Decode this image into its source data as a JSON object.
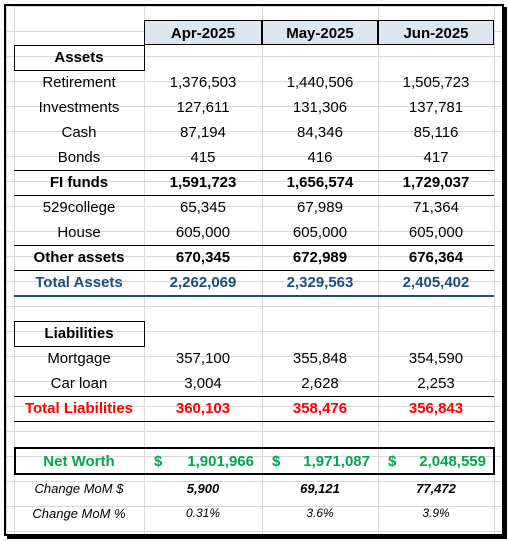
{
  "columns": [
    "Apr-2025",
    "May-2025",
    "Jun-2025"
  ],
  "assets": {
    "heading": "Assets",
    "rows": [
      {
        "label": "Retirement",
        "values": [
          "1,376,503",
          "1,440,506",
          "1,505,723"
        ]
      },
      {
        "label": "Investments",
        "values": [
          "127,611",
          "131,306",
          "137,781"
        ]
      },
      {
        "label": "Cash",
        "values": [
          "87,194",
          "84,346",
          "85,116"
        ]
      },
      {
        "label": "Bonds",
        "values": [
          "415",
          "416",
          "417"
        ]
      }
    ],
    "fi_funds": {
      "label": "FI funds",
      "values": [
        "1,591,723",
        "1,656,574",
        "1,729,037"
      ]
    },
    "other_rows": [
      {
        "label": "529college",
        "values": [
          "65,345",
          "67,989",
          "71,364"
        ]
      },
      {
        "label": "House",
        "values": [
          "605,000",
          "605,000",
          "605,000"
        ]
      }
    ],
    "other_assets": {
      "label": "Other assets",
      "values": [
        "670,345",
        "672,989",
        "676,364"
      ]
    },
    "total": {
      "label": "Total Assets",
      "values": [
        "2,262,069",
        "2,329,563",
        "2,405,402"
      ]
    }
  },
  "liabilities": {
    "heading": "Liabilities",
    "rows": [
      {
        "label": "Mortgage",
        "values": [
          "357,100",
          "355,848",
          "354,590"
        ]
      },
      {
        "label": "Car loan",
        "values": [
          "3,004",
          "2,628",
          "2,253"
        ]
      }
    ],
    "total": {
      "label": "Total Liabilities",
      "values": [
        "360,103",
        "358,476",
        "356,843"
      ]
    }
  },
  "net_worth": {
    "label": "Net Worth",
    "currency": "$",
    "values": [
      "1,901,966",
      "1,971,087",
      "2,048,559"
    ]
  },
  "change_mom_dollar": {
    "label": "Change MoM $",
    "values": [
      "5,900",
      "69,121",
      "77,472"
    ]
  },
  "change_mom_pct": {
    "label": "Change MoM %",
    "values": [
      "0.31%",
      "3.6%",
      "3.9%"
    ]
  },
  "colors": {
    "header_bg": "#dce6f1",
    "total_assets": "#1f4e79",
    "total_liabilities": "#ff0000",
    "net_worth": "#00a650"
  }
}
